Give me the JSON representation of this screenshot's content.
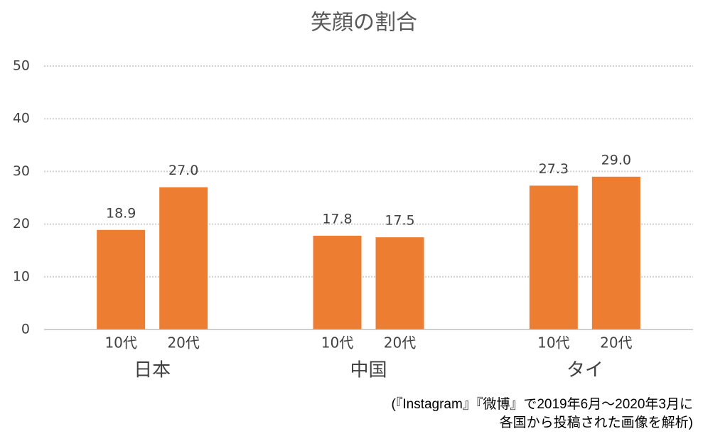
{
  "chart_data": {
    "type": "bar",
    "title": "笑顔の割合",
    "categories": [
      "日本",
      "中国",
      "タイ"
    ],
    "series": [
      {
        "name": "10代",
        "color": "#ed7d31",
        "values": [
          18.9,
          17.8,
          27.3
        ],
        "value_labels": [
          "18.9",
          "17.8",
          "27.3"
        ]
      },
      {
        "name": "20代",
        "color": "#ed7d31",
        "values": [
          27.0,
          17.5,
          29.0
        ],
        "value_labels": [
          "27.0",
          "17.5",
          "29.0"
        ]
      }
    ],
    "ylim": [
      0,
      50
    ],
    "yticks": [
      0,
      10,
      20,
      30,
      40,
      50
    ],
    "grid": true,
    "note": [
      "(『Instagram』『微博』で2019年6月～2020年3月に",
      "各国から投稿された画像を解析)"
    ]
  }
}
